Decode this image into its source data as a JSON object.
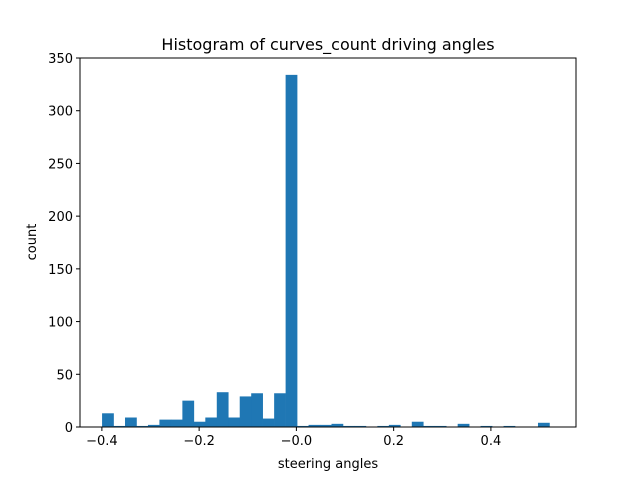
{
  "chart_data": {
    "type": "bar",
    "title": "Histogram of curves_count driving angles",
    "xlabel": "steering angles",
    "ylabel": "count",
    "xlim": [
      -0.445,
      0.575
    ],
    "ylim": [
      0,
      350
    ],
    "xticks": [
      -0.4,
      -0.2,
      0.0,
      0.2,
      0.4
    ],
    "xtick_labels": [
      "−0.4",
      "−0.2",
      "−0.0",
      "0.2",
      "0.4"
    ],
    "yticks": [
      0,
      50,
      100,
      150,
      200,
      250,
      300,
      350
    ],
    "ytick_labels": [
      "0",
      "50",
      "100",
      "150",
      "200",
      "250",
      "300",
      "350"
    ],
    "bin_start": -0.4232,
    "bin_width": 0.02359,
    "counts": [
      0,
      13,
      1,
      9,
      1,
      2,
      7,
      7,
      25,
      5,
      9,
      33,
      9,
      29,
      32,
      8,
      32,
      334,
      1,
      2,
      2,
      3,
      1,
      1,
      0,
      1,
      2,
      0,
      5,
      1,
      1,
      0,
      3,
      0,
      1,
      0,
      1,
      0,
      0,
      4
    ],
    "bar_color": "#1f77b4",
    "grid": false,
    "legend": "none"
  }
}
